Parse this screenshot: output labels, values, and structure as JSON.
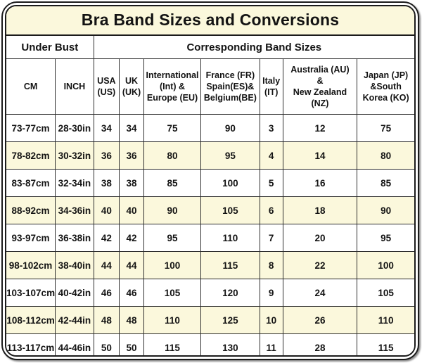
{
  "title": "Bra Band Sizes and Conversions",
  "group_headers": {
    "under_bust": "Under Bust",
    "corresponding_band_sizes": "Corresponding Band Sizes"
  },
  "column_headers_display": [
    "CM",
    "INCH",
    "USA\n(US)",
    "UK\n(UK)",
    "International\n(Int) &\nEurope (EU)",
    "France (FR)\nSpain(ES)&\nBelgium(BE)",
    "Italy\n(IT)",
    "Australia (AU)\n&\nNew Zealand\n(NZ)",
    "Japan (JP)\n&South\nKorea (KO)"
  ],
  "colors": {
    "cream_background": "#FBF8DC",
    "row_alternate_background": "#FBF8DC",
    "row_background": "#FFFFFF",
    "border": "#1B1B1B",
    "cell_line": "#2E2E2E",
    "text": "#131313",
    "page_background": "#FFFFFF"
  },
  "chart_data": {
    "type": "table",
    "title": "Bra Band Sizes and Conversions",
    "column_groups": [
      {
        "label": "Under Bust",
        "span": 2
      },
      {
        "label": "Corresponding Band Sizes",
        "span": 7
      }
    ],
    "columns": [
      "CM",
      "INCH",
      "USA (US)",
      "UK (UK)",
      "International (Int) & Europe (EU)",
      "France (FR) Spain(ES)& Belgium(BE)",
      "Italy (IT)",
      "Australia (AU) & New Zealand (NZ)",
      "Japan (JP) &South Korea (KO)"
    ],
    "rows": [
      [
        "73-77cm",
        "28-30in",
        "34",
        "34",
        "75",
        "90",
        "3",
        "12",
        "75"
      ],
      [
        "78-82cm",
        "30-32in",
        "36",
        "36",
        "80",
        "95",
        "4",
        "14",
        "80"
      ],
      [
        "83-87cm",
        "32-34in",
        "38",
        "38",
        "85",
        "100",
        "5",
        "16",
        "85"
      ],
      [
        "88-92cm",
        "34-36in",
        "40",
        "40",
        "90",
        "105",
        "6",
        "18",
        "90"
      ],
      [
        "93-97cm",
        "36-38in",
        "42",
        "42",
        "95",
        "110",
        "7",
        "20",
        "95"
      ],
      [
        "98-102cm",
        "38-40in",
        "44",
        "44",
        "100",
        "115",
        "8",
        "22",
        "100"
      ],
      [
        "103-107cm",
        "40-42in",
        "46",
        "46",
        "105",
        "120",
        "9",
        "24",
        "105"
      ],
      [
        "108-112cm",
        "42-44in",
        "48",
        "48",
        "110",
        "125",
        "10",
        "26",
        "110"
      ],
      [
        "113-117cm",
        "44-46in",
        "50",
        "50",
        "115",
        "130",
        "11",
        "28",
        "115"
      ]
    ],
    "row_shading": "alternating white and pale yellow starting with white",
    "layout": {
      "grid": true,
      "legend": "none"
    }
  }
}
